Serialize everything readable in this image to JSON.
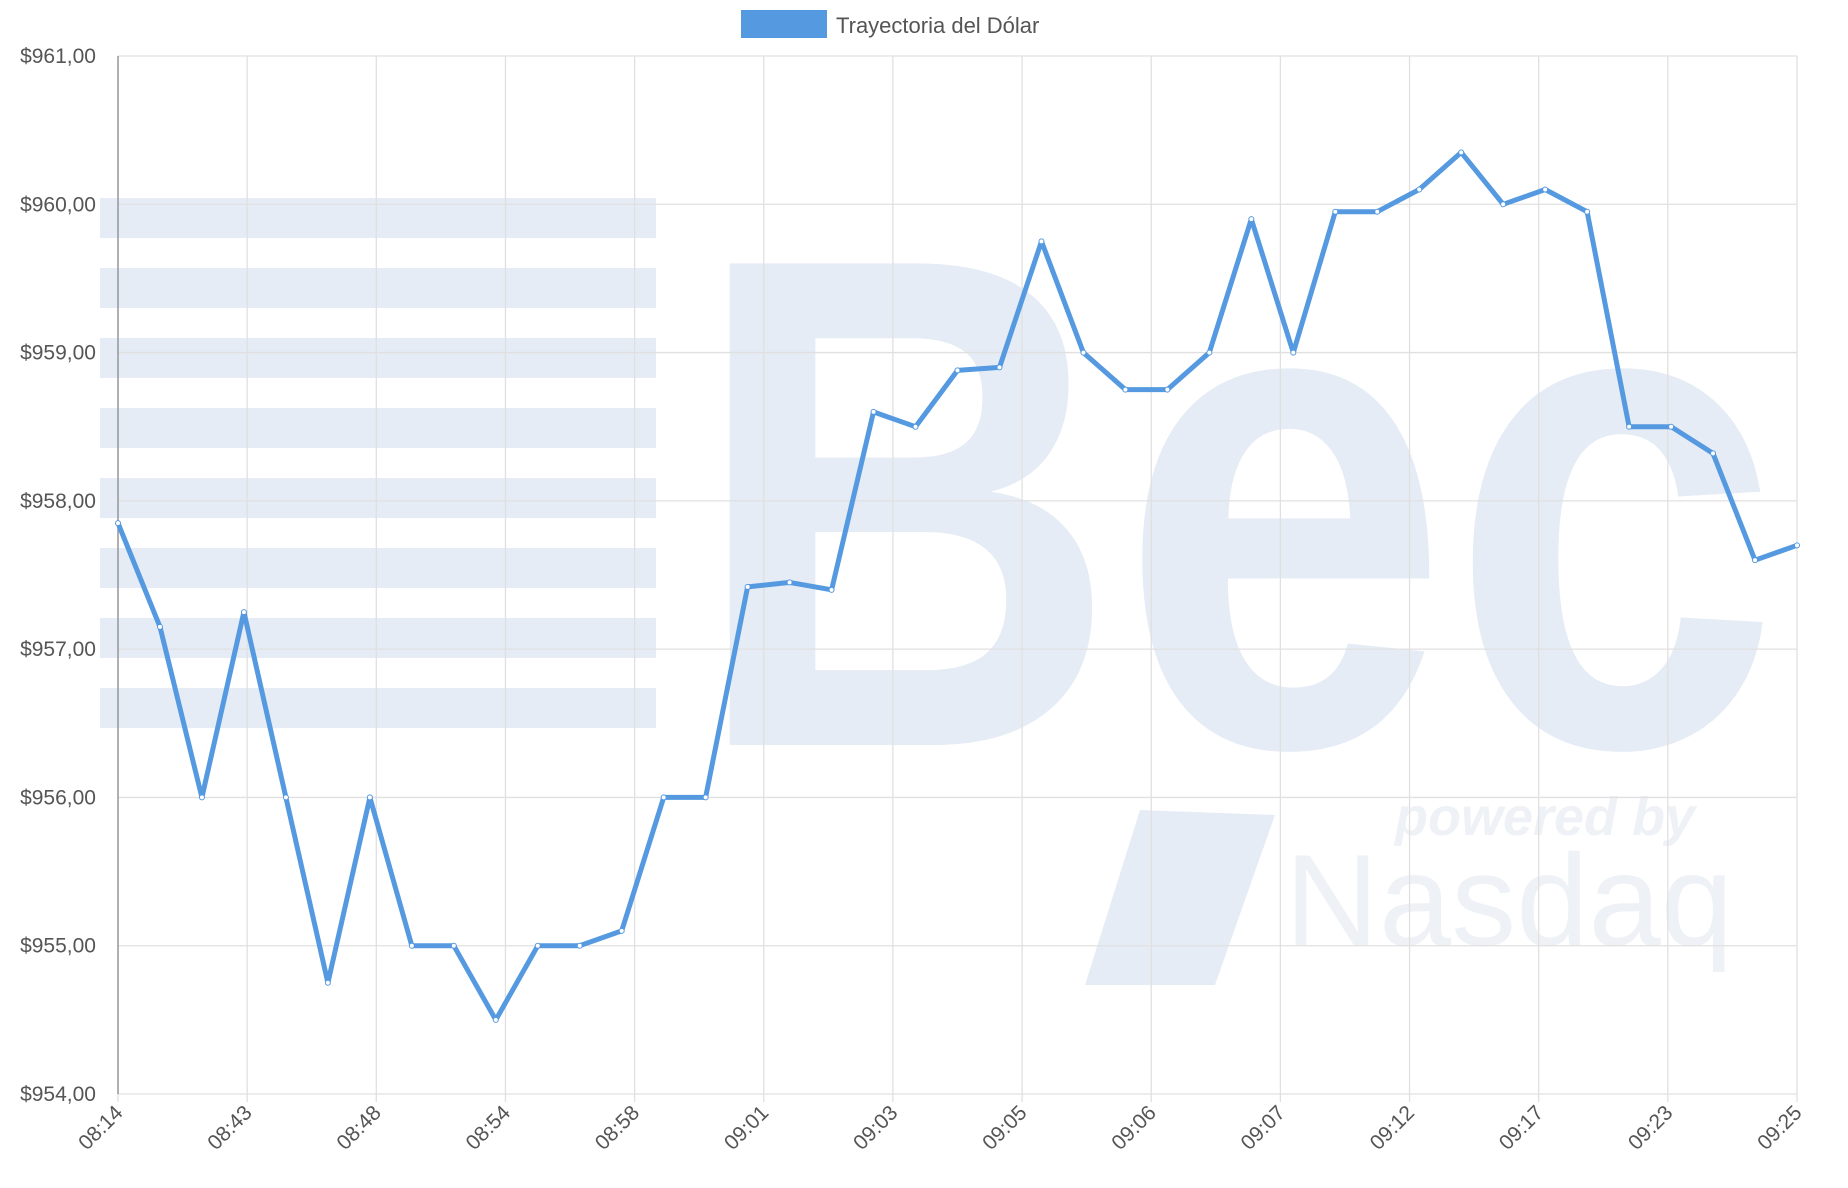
{
  "colors": {
    "series": "#5599e0",
    "grid": "#e0e0e0",
    "text": "#555555",
    "watermark": "#e6ecf5"
  },
  "watermark": {
    "logo_text": "Bec",
    "powered_by": "powered by",
    "partner": "Nasdaq"
  },
  "chart_data": {
    "type": "line",
    "legend": {
      "position": "top-center"
    },
    "series": [
      {
        "name": "Trayectoria del Dólar",
        "color": "#5599e0",
        "values": [
          957.85,
          957.15,
          956.0,
          957.25,
          956.0,
          954.75,
          956.0,
          955.0,
          955.0,
          954.5,
          955.0,
          955.0,
          955.1,
          956.0,
          956.0,
          957.42,
          957.45,
          957.4,
          958.6,
          958.5,
          958.88,
          958.9,
          959.75,
          959.0,
          958.75,
          958.75,
          959.0,
          959.9,
          959.0,
          959.95,
          959.95,
          960.1,
          960.35,
          960.0,
          960.1,
          959.95,
          958.5,
          958.5,
          958.32,
          957.6,
          957.7
        ]
      }
    ],
    "x_tick_labels": [
      "08:14",
      "08:43",
      "08:48",
      "08:54",
      "08:58",
      "09:01",
      "09:03",
      "09:05",
      "09:06",
      "09:07",
      "09:12",
      "09:17",
      "09:23",
      "09:25"
    ],
    "y_tick_labels": [
      "$961,00",
      "$960,00",
      "$959,00",
      "$958,00",
      "$957,00",
      "$956,00",
      "$955,00",
      "$954,00"
    ],
    "ylim": [
      954,
      961
    ],
    "grid": true
  }
}
